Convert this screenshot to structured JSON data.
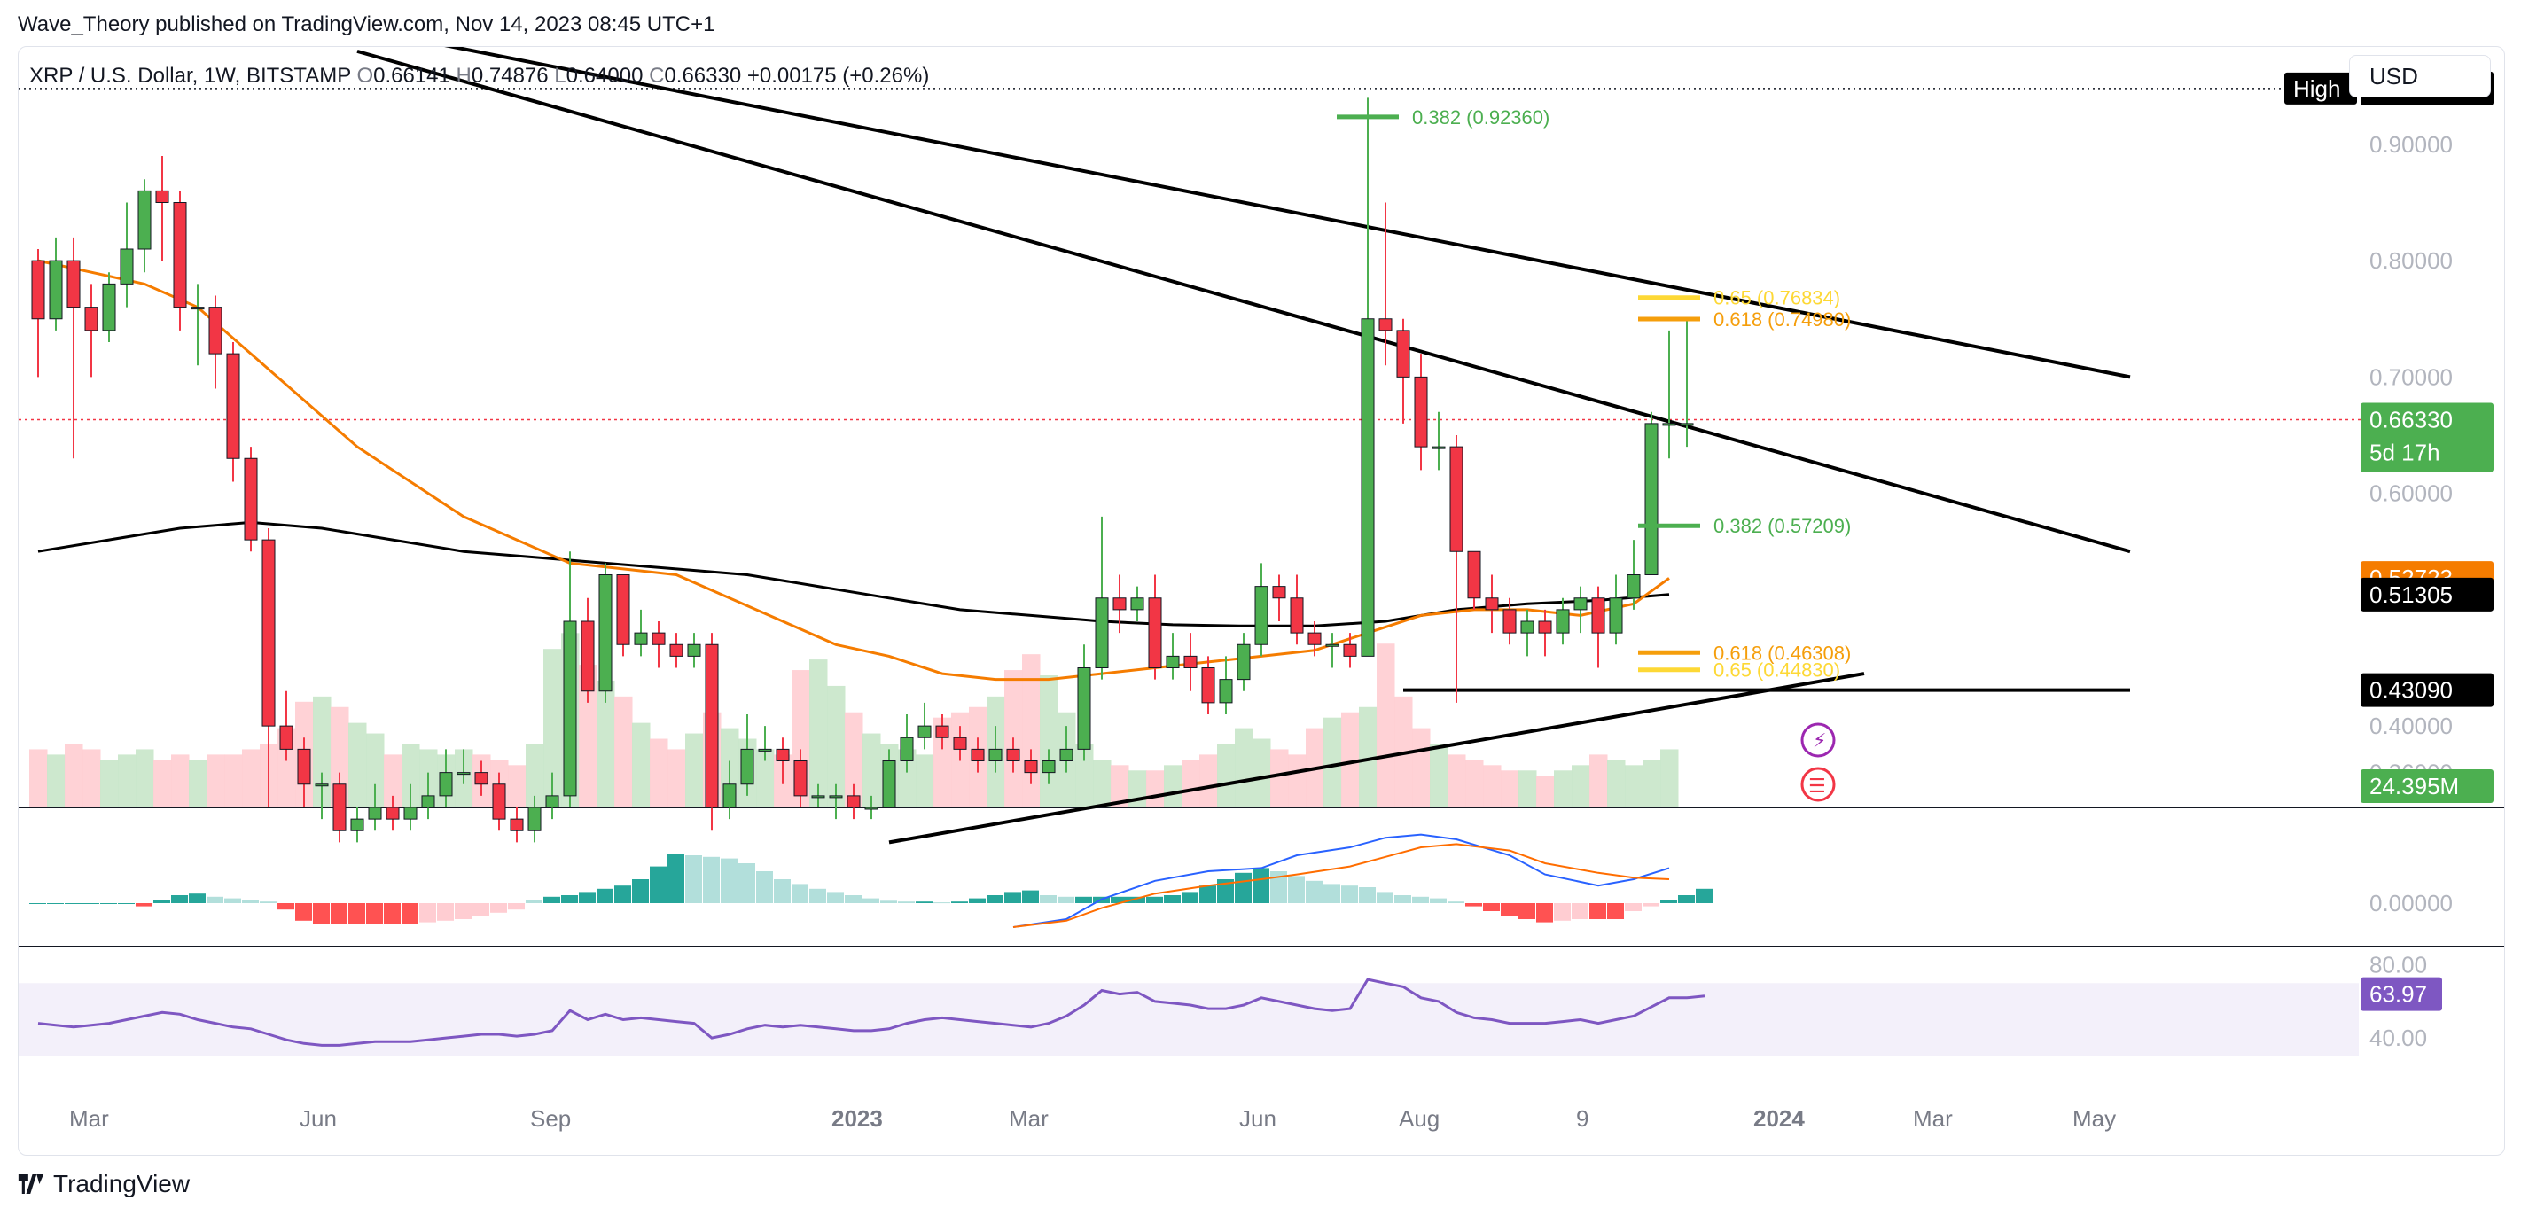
{
  "publisher": "Wave_Theory published on TradingView.com, Nov 14, 2023 08:45 UTC+1",
  "brand": "TradingView",
  "currency_button": "USD",
  "colors": {
    "up": "#4caf50",
    "down": "#f23645",
    "ema": "#f57c00",
    "sma": "#000000",
    "fib_green": "#4caf50",
    "fib_orange": "#f59e0b",
    "fib_yellow": "#fdd835",
    "macd_line": "#2962ff",
    "signal_line": "#ff6d00",
    "rsi": "#7e57c2",
    "hist_up_strong": "#26a69a",
    "hist_up_weak": "#b2dfdb",
    "hist_down_strong": "#ff5252",
    "hist_down_weak": "#ffcdd2"
  },
  "chart_data": {
    "type": "candlestick",
    "symbol": "XRP / U.S. Dollar, 1W, BITSTAMP",
    "ohlc_header": {
      "O": "0.66141",
      "H": "0.74876",
      "L": "0.64000",
      "C": "0.66330",
      "change": "+0.00175 (+0.26%)"
    },
    "price_ticks": [
      "0.90000",
      "0.80000",
      "0.70000",
      "0.60000",
      "0.40000",
      "0.36000"
    ],
    "price_range": [
      0.33,
      0.97
    ],
    "x_labels": [
      {
        "label": "Mar",
        "bold": false,
        "i": 3
      },
      {
        "label": "Jun",
        "bold": false,
        "i": 16
      },
      {
        "label": "Sep",
        "bold": false,
        "i": 29
      },
      {
        "label": "2023",
        "bold": true,
        "i": 46
      },
      {
        "label": "Mar",
        "bold": false,
        "i": 56
      },
      {
        "label": "Jun",
        "bold": false,
        "i": 69
      },
      {
        "label": "Aug",
        "bold": false,
        "i": 78
      },
      {
        "label": "9",
        "bold": false,
        "i": 88
      },
      {
        "label": "2024",
        "bold": true,
        "i": 98
      },
      {
        "label": "Mar",
        "bold": false,
        "i": 107
      },
      {
        "label": "May",
        "bold": false,
        "i": 116
      }
    ],
    "candles": [
      [
        0.8,
        0.75,
        0.81,
        0.7
      ],
      [
        0.75,
        0.8,
        0.82,
        0.74
      ],
      [
        0.8,
        0.76,
        0.82,
        0.63
      ],
      [
        0.76,
        0.74,
        0.78,
        0.7
      ],
      [
        0.74,
        0.78,
        0.79,
        0.73
      ],
      [
        0.78,
        0.81,
        0.85,
        0.76
      ],
      [
        0.81,
        0.86,
        0.87,
        0.79
      ],
      [
        0.86,
        0.85,
        0.89,
        0.8
      ],
      [
        0.85,
        0.76,
        0.86,
        0.74
      ],
      [
        0.76,
        0.76,
        0.78,
        0.71
      ],
      [
        0.76,
        0.72,
        0.77,
        0.69
      ],
      [
        0.72,
        0.63,
        0.73,
        0.61
      ],
      [
        0.63,
        0.56,
        0.64,
        0.55
      ],
      [
        0.56,
        0.4,
        0.57,
        0.33
      ],
      [
        0.4,
        0.38,
        0.43,
        0.37
      ],
      [
        0.38,
        0.35,
        0.39,
        0.33
      ],
      [
        0.35,
        0.35,
        0.36,
        0.32
      ],
      [
        0.35,
        0.31,
        0.36,
        0.3
      ],
      [
        0.31,
        0.32,
        0.33,
        0.3
      ],
      [
        0.32,
        0.33,
        0.35,
        0.31
      ],
      [
        0.33,
        0.32,
        0.34,
        0.31
      ],
      [
        0.32,
        0.33,
        0.35,
        0.31
      ],
      [
        0.33,
        0.34,
        0.36,
        0.32
      ],
      [
        0.34,
        0.36,
        0.38,
        0.33
      ],
      [
        0.36,
        0.36,
        0.38,
        0.35
      ],
      [
        0.36,
        0.35,
        0.37,
        0.34
      ],
      [
        0.35,
        0.32,
        0.36,
        0.31
      ],
      [
        0.32,
        0.31,
        0.33,
        0.3
      ],
      [
        0.31,
        0.33,
        0.34,
        0.3
      ],
      [
        0.33,
        0.34,
        0.36,
        0.32
      ],
      [
        0.34,
        0.49,
        0.55,
        0.33
      ],
      [
        0.49,
        0.43,
        0.51,
        0.42
      ],
      [
        0.43,
        0.53,
        0.54,
        0.42
      ],
      [
        0.53,
        0.47,
        0.53,
        0.46
      ],
      [
        0.47,
        0.48,
        0.5,
        0.46
      ],
      [
        0.48,
        0.47,
        0.49,
        0.45
      ],
      [
        0.47,
        0.46,
        0.48,
        0.45
      ],
      [
        0.46,
        0.47,
        0.48,
        0.45
      ],
      [
        0.47,
        0.33,
        0.48,
        0.31
      ],
      [
        0.33,
        0.35,
        0.37,
        0.32
      ],
      [
        0.35,
        0.38,
        0.41,
        0.34
      ],
      [
        0.38,
        0.38,
        0.4,
        0.37
      ],
      [
        0.38,
        0.37,
        0.39,
        0.35
      ],
      [
        0.37,
        0.34,
        0.38,
        0.33
      ],
      [
        0.34,
        0.34,
        0.35,
        0.33
      ],
      [
        0.34,
        0.34,
        0.35,
        0.32
      ],
      [
        0.34,
        0.33,
        0.35,
        0.32
      ],
      [
        0.33,
        0.33,
        0.34,
        0.32
      ],
      [
        0.33,
        0.37,
        0.38,
        0.33
      ],
      [
        0.37,
        0.39,
        0.41,
        0.36
      ],
      [
        0.39,
        0.4,
        0.42,
        0.38
      ],
      [
        0.4,
        0.39,
        0.41,
        0.38
      ],
      [
        0.39,
        0.38,
        0.4,
        0.37
      ],
      [
        0.38,
        0.37,
        0.39,
        0.36
      ],
      [
        0.37,
        0.38,
        0.4,
        0.36
      ],
      [
        0.38,
        0.37,
        0.39,
        0.36
      ],
      [
        0.37,
        0.36,
        0.38,
        0.35
      ],
      [
        0.36,
        0.37,
        0.38,
        0.35
      ],
      [
        0.37,
        0.38,
        0.4,
        0.36
      ],
      [
        0.38,
        0.45,
        0.47,
        0.37
      ],
      [
        0.45,
        0.51,
        0.58,
        0.44
      ],
      [
        0.51,
        0.5,
        0.53,
        0.48
      ],
      [
        0.5,
        0.51,
        0.52,
        0.49
      ],
      [
        0.51,
        0.45,
        0.53,
        0.44
      ],
      [
        0.45,
        0.46,
        0.48,
        0.44
      ],
      [
        0.46,
        0.45,
        0.48,
        0.43
      ],
      [
        0.45,
        0.42,
        0.46,
        0.41
      ],
      [
        0.42,
        0.44,
        0.46,
        0.41
      ],
      [
        0.44,
        0.47,
        0.48,
        0.43
      ],
      [
        0.47,
        0.52,
        0.54,
        0.46
      ],
      [
        0.52,
        0.51,
        0.53,
        0.49
      ],
      [
        0.51,
        0.48,
        0.53,
        0.47
      ],
      [
        0.48,
        0.47,
        0.49,
        0.46
      ],
      [
        0.47,
        0.47,
        0.48,
        0.45
      ],
      [
        0.47,
        0.46,
        0.48,
        0.45
      ],
      [
        0.46,
        0.75,
        0.94,
        0.46
      ],
      [
        0.75,
        0.74,
        0.85,
        0.71
      ],
      [
        0.74,
        0.7,
        0.75,
        0.66
      ],
      [
        0.7,
        0.64,
        0.72,
        0.62
      ],
      [
        0.64,
        0.64,
        0.67,
        0.62
      ],
      [
        0.64,
        0.55,
        0.65,
        0.42
      ],
      [
        0.55,
        0.51,
        0.55,
        0.5
      ],
      [
        0.51,
        0.5,
        0.53,
        0.48
      ],
      [
        0.5,
        0.48,
        0.51,
        0.47
      ],
      [
        0.48,
        0.49,
        0.5,
        0.46
      ],
      [
        0.49,
        0.48,
        0.5,
        0.46
      ],
      [
        0.48,
        0.5,
        0.51,
        0.47
      ],
      [
        0.5,
        0.51,
        0.52,
        0.48
      ],
      [
        0.51,
        0.48,
        0.52,
        0.45
      ],
      [
        0.48,
        0.51,
        0.53,
        0.47
      ],
      [
        0.51,
        0.53,
        0.56,
        0.5
      ],
      [
        0.53,
        0.66,
        0.67,
        0.53
      ],
      [
        0.66,
        0.66,
        0.74,
        0.63
      ],
      [
        0.66,
        0.66,
        0.75,
        0.64
      ]
    ],
    "ema_series": [
      [
        0,
        0.8
      ],
      [
        3,
        0.79
      ],
      [
        6,
        0.78
      ],
      [
        9,
        0.76
      ],
      [
        12,
        0.72
      ],
      [
        15,
        0.68
      ],
      [
        18,
        0.64
      ],
      [
        21,
        0.61
      ],
      [
        24,
        0.58
      ],
      [
        27,
        0.56
      ],
      [
        30,
        0.54
      ],
      [
        33,
        0.535
      ],
      [
        36,
        0.53
      ],
      [
        39,
        0.51
      ],
      [
        42,
        0.49
      ],
      [
        45,
        0.47
      ],
      [
        48,
        0.46
      ],
      [
        51,
        0.445
      ],
      [
        54,
        0.44
      ],
      [
        57,
        0.44
      ],
      [
        60,
        0.445
      ],
      [
        63,
        0.45
      ],
      [
        66,
        0.455
      ],
      [
        69,
        0.46
      ],
      [
        72,
        0.465
      ],
      [
        75,
        0.48
      ],
      [
        78,
        0.495
      ],
      [
        81,
        0.5
      ],
      [
        84,
        0.5
      ],
      [
        87,
        0.495
      ],
      [
        90,
        0.505
      ],
      [
        92,
        0.527
      ]
    ],
    "sma_series": [
      [
        0,
        0.55
      ],
      [
        4,
        0.56
      ],
      [
        8,
        0.57
      ],
      [
        12,
        0.575
      ],
      [
        16,
        0.57
      ],
      [
        20,
        0.56
      ],
      [
        24,
        0.55
      ],
      [
        28,
        0.545
      ],
      [
        32,
        0.54
      ],
      [
        36,
        0.535
      ],
      [
        40,
        0.53
      ],
      [
        44,
        0.52
      ],
      [
        48,
        0.51
      ],
      [
        52,
        0.5
      ],
      [
        56,
        0.495
      ],
      [
        60,
        0.49
      ],
      [
        64,
        0.487
      ],
      [
        68,
        0.486
      ],
      [
        72,
        0.486
      ],
      [
        76,
        0.49
      ],
      [
        80,
        0.5
      ],
      [
        84,
        0.505
      ],
      [
        88,
        0.508
      ],
      [
        92,
        0.513
      ]
    ],
    "volume": [
      0.22,
      0.2,
      0.24,
      0.22,
      0.18,
      0.2,
      0.22,
      0.18,
      0.2,
      0.18,
      0.2,
      0.2,
      0.22,
      0.24,
      0.3,
      0.4,
      0.42,
      0.38,
      0.32,
      0.28,
      0.2,
      0.24,
      0.22,
      0.2,
      0.22,
      0.2,
      0.18,
      0.16,
      0.24,
      0.6,
      0.66,
      0.54,
      0.48,
      0.42,
      0.32,
      0.26,
      0.22,
      0.28,
      0.36,
      0.3,
      0.26,
      0.22,
      0.2,
      0.52,
      0.56,
      0.46,
      0.36,
      0.28,
      0.24,
      0.22,
      0.2,
      0.34,
      0.36,
      0.38,
      0.42,
      0.52,
      0.58,
      0.5,
      0.36,
      0.24,
      0.18,
      0.16,
      0.14,
      0.14,
      0.16,
      0.18,
      0.2,
      0.24,
      0.3,
      0.26,
      0.22,
      0.2,
      0.3,
      0.34,
      0.36,
      0.38,
      0.62,
      0.42,
      0.3,
      0.24,
      0.2,
      0.18,
      0.16,
      0.14,
      0.14,
      0.12,
      0.14,
      0.16,
      0.2,
      0.18,
      0.16,
      0.18,
      0.22
    ],
    "volume_label": "24.395M",
    "macd_hist": [
      0.0,
      0.0,
      0.0,
      0.0,
      0.0,
      0.0,
      -0.04,
      0.04,
      0.1,
      0.12,
      0.08,
      0.06,
      0.04,
      0.02,
      -0.08,
      -0.22,
      -0.26,
      -0.26,
      -0.26,
      -0.26,
      -0.26,
      -0.26,
      -0.24,
      -0.22,
      -0.2,
      -0.16,
      -0.12,
      -0.08,
      0.04,
      0.08,
      0.1,
      0.14,
      0.18,
      0.22,
      0.3,
      0.46,
      0.62,
      0.6,
      0.58,
      0.56,
      0.5,
      0.4,
      0.3,
      0.24,
      0.18,
      0.14,
      0.1,
      0.06,
      0.03,
      0.02,
      0.02,
      0.01,
      0.02,
      0.06,
      0.1,
      0.14,
      0.16,
      0.1,
      0.08,
      0.08,
      0.08,
      0.08,
      0.08,
      0.08,
      0.1,
      0.14,
      0.22,
      0.3,
      0.38,
      0.44,
      0.4,
      0.34,
      0.28,
      0.24,
      0.22,
      0.2,
      0.14,
      0.1,
      0.08,
      0.06,
      0.02,
      -0.04,
      -0.1,
      -0.16,
      -0.2,
      -0.24,
      -0.22,
      -0.2,
      -0.2,
      -0.2,
      -0.1,
      -0.04,
      0.04,
      0.1,
      0.18
    ],
    "macd_line": [
      [
        55,
        -0.3
      ],
      [
        58,
        -0.2
      ],
      [
        60,
        0.05
      ],
      [
        63,
        0.28
      ],
      [
        66,
        0.4
      ],
      [
        69,
        0.44
      ],
      [
        71,
        0.6
      ],
      [
        74,
        0.7
      ],
      [
        76,
        0.82
      ],
      [
        78,
        0.86
      ],
      [
        80,
        0.8
      ],
      [
        83,
        0.6
      ],
      [
        85,
        0.36
      ],
      [
        88,
        0.22
      ],
      [
        90,
        0.3
      ],
      [
        92,
        0.44
      ]
    ],
    "signal_line": [
      [
        55,
        -0.3
      ],
      [
        58,
        -0.22
      ],
      [
        60,
        -0.06
      ],
      [
        63,
        0.12
      ],
      [
        66,
        0.22
      ],
      [
        69,
        0.3
      ],
      [
        71,
        0.36
      ],
      [
        74,
        0.46
      ],
      [
        76,
        0.58
      ],
      [
        78,
        0.7
      ],
      [
        80,
        0.74
      ],
      [
        83,
        0.66
      ],
      [
        85,
        0.5
      ],
      [
        88,
        0.38
      ],
      [
        90,
        0.32
      ],
      [
        92,
        0.3
      ]
    ],
    "macd_ticks": [
      "0.00000"
    ],
    "rsi_values": [
      48,
      47,
      46,
      47,
      48,
      50,
      52,
      54,
      53,
      50,
      48,
      46,
      45,
      42,
      39,
      37,
      36,
      36,
      37,
      38,
      38,
      38,
      39,
      40,
      41,
      42,
      42,
      41,
      42,
      44,
      55,
      50,
      53,
      50,
      51,
      50,
      49,
      48,
      40,
      42,
      45,
      47,
      46,
      47,
      46,
      45,
      44,
      44,
      45,
      48,
      50,
      51,
      50,
      49,
      48,
      47,
      46,
      48,
      52,
      58,
      66,
      64,
      65,
      60,
      59,
      58,
      56,
      56,
      58,
      62,
      60,
      58,
      56,
      55,
      56,
      72,
      70,
      68,
      62,
      60,
      54,
      51,
      50,
      48,
      48,
      48,
      49,
      50,
      48,
      50,
      52,
      57,
      62,
      62,
      63
    ],
    "rsi_ticks": [
      "80.00",
      "40.00"
    ],
    "rsi_label": "63.97",
    "fib_levels": [
      {
        "label": "0.382 (0.92360)",
        "price": 0.9236,
        "color": "green",
        "at": 75
      },
      {
        "label": "0.65 (0.76834)",
        "price": 0.7683,
        "color": "yellow",
        "at": 92
      },
      {
        "label": "0.618 (0.74980)",
        "price": 0.7498,
        "color": "orange",
        "at": 92
      },
      {
        "label": "0.382 (0.57209)",
        "price": 0.5721,
        "color": "green",
        "at": 92
      },
      {
        "label": "0.618 (0.46308)",
        "price": 0.4631,
        "color": "orange",
        "at": 92
      },
      {
        "label": "0.65 (0.44830)",
        "price": 0.4483,
        "color": "yellow",
        "at": 92
      }
    ],
    "price_markers": [
      {
        "label": "High",
        "value": "0.94799",
        "price": 0.948,
        "bg": "#000000"
      },
      {
        "label": "",
        "value": "0.66330",
        "price": 0.6633,
        "bg": "#4caf50",
        "sub": "5d 17h"
      },
      {
        "label": "",
        "value": "0.52723",
        "price": 0.5272,
        "bg": "#f57c00"
      },
      {
        "label": "",
        "value": "0.51305",
        "price": 0.513,
        "bg": "#000000"
      },
      {
        "label": "",
        "value": "0.43090",
        "price": 0.4309,
        "bg": "#000000"
      }
    ],
    "trendlines": [
      {
        "name": "upper-channel",
        "from": [
          18,
          1.0
        ],
        "to": [
          118,
          0.7
        ]
      },
      {
        "name": "lower-channel",
        "from": [
          18,
          0.98
        ],
        "to": [
          118,
          0.55
        ]
      },
      {
        "name": "support-rising",
        "from": [
          48,
          0.3
        ],
        "to": [
          103,
          0.445
        ]
      },
      {
        "name": "horizontal-support",
        "from": [
          77,
          0.4309
        ],
        "to": [
          118,
          0.4309
        ]
      }
    ]
  }
}
